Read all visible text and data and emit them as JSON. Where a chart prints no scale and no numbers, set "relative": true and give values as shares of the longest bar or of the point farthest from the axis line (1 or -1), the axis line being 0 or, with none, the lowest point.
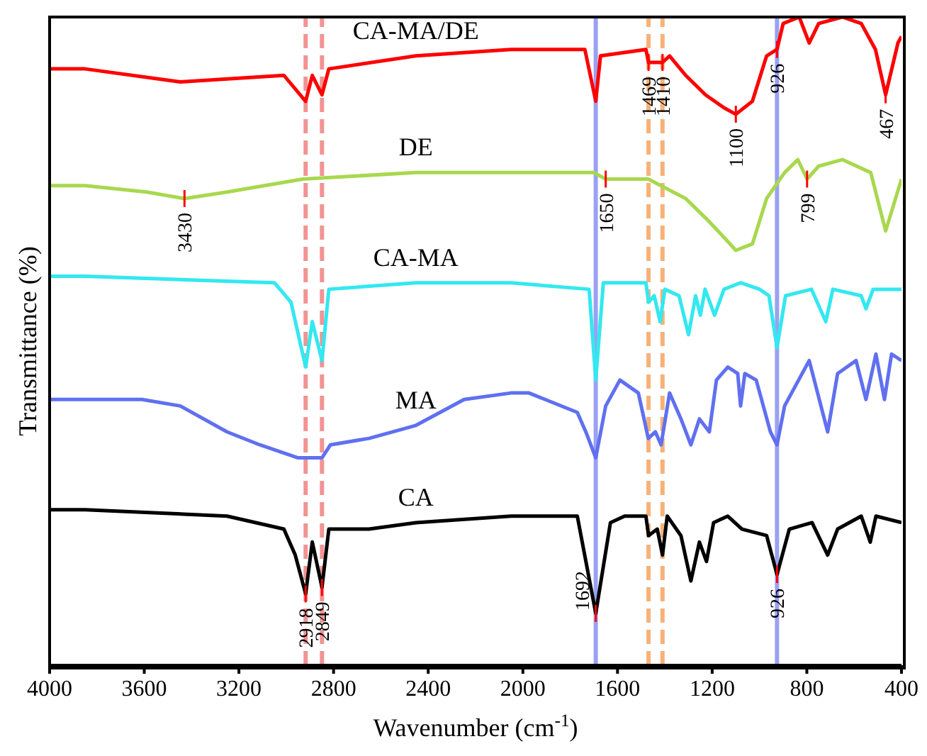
{
  "chart_data": {
    "type": "line",
    "relative": true,
    "xlabel": "Wavenumber (cm$^{-1}$)",
    "ylabel": "Transmittance (%)",
    "xlim": [
      4000,
      400
    ],
    "xticks": [
      4000,
      3600,
      3200,
      2800,
      2400,
      2000,
      1600,
      1200,
      800,
      400
    ],
    "marker": "none",
    "line_style": "solid",
    "series": [
      {
        "name": "CA-MA/DE",
        "color": "#ff0000",
        "x": [
          4000,
          3850,
          3448,
          3010,
          2918,
          2890,
          2849,
          2820,
          2452,
          2050,
          1738,
          1692,
          1672,
          1480,
          1469,
          1432,
          1410,
          1380,
          1312,
          1228,
          1150,
          1100,
          1030,
          970,
          926,
          900,
          832,
          790,
          750,
          650,
          570,
          510,
          467,
          415,
          400
        ],
        "values": [
          0.92,
          0.92,
          0.9,
          0.91,
          0.87,
          0.91,
          0.88,
          0.92,
          0.94,
          0.95,
          0.95,
          0.87,
          0.94,
          0.95,
          0.93,
          0.93,
          0.93,
          0.94,
          0.91,
          0.88,
          0.86,
          0.85,
          0.87,
          0.94,
          0.95,
          0.99,
          1,
          0.96,
          0.99,
          1,
          0.99,
          0.95,
          0.88,
          0.96,
          0.97
        ]
      },
      {
        "name": "DE",
        "color": "#a8d84e",
        "x": [
          4000,
          3850,
          3590,
          3430,
          3250,
          2930,
          2452,
          2050,
          1700,
          1650,
          1470,
          1312,
          1228,
          1150,
          1100,
          1030,
          970,
          894,
          838,
          799,
          750,
          650,
          530,
          467,
          400
        ],
        "values": [
          0.74,
          0.74,
          0.73,
          0.72,
          0.73,
          0.75,
          0.76,
          0.76,
          0.76,
          0.75,
          0.75,
          0.72,
          0.69,
          0.66,
          0.64,
          0.65,
          0.72,
          0.76,
          0.78,
          0.75,
          0.77,
          0.78,
          0.76,
          0.67,
          0.75
        ]
      },
      {
        "name": "CA-MA",
        "color": "#33e8f0",
        "x": [
          4000,
          3850,
          3050,
          2980,
          2918,
          2890,
          2849,
          2820,
          2452,
          2050,
          1720,
          1692,
          1660,
          1480,
          1469,
          1445,
          1420,
          1400,
          1340,
          1300,
          1270,
          1250,
          1230,
          1190,
          1150,
          1080,
          1000,
          960,
          926,
          890,
          780,
          720,
          690,
          570,
          550,
          520,
          400
        ],
        "values": [
          0.6,
          0.6,
          0.59,
          0.56,
          0.46,
          0.53,
          0.47,
          0.58,
          0.59,
          0.59,
          0.58,
          0.44,
          0.59,
          0.59,
          0.56,
          0.57,
          0.53,
          0.58,
          0.57,
          0.51,
          0.57,
          0.54,
          0.58,
          0.54,
          0.58,
          0.59,
          0.58,
          0.57,
          0.49,
          0.57,
          0.58,
          0.53,
          0.58,
          0.57,
          0.55,
          0.58,
          0.58
        ]
      },
      {
        "name": "MA",
        "color": "#6070f0",
        "x": [
          4000,
          3850,
          3610,
          3448,
          3250,
          3112,
          2950,
          2849,
          2813,
          2650,
          2452,
          2248,
          2050,
          1974,
          1770,
          1734,
          1692,
          1650,
          1590,
          1512,
          1470,
          1440,
          1416,
          1380,
          1332,
          1290,
          1254,
          1212,
          1182,
          1134,
          1092,
          1080,
          1062,
          1014,
          954,
          926,
          894,
          790,
          712,
          670,
          592,
          550,
          508,
          472,
          442,
          400
        ],
        "values": [
          0.41,
          0.41,
          0.41,
          0.4,
          0.36,
          0.34,
          0.32,
          0.32,
          0.34,
          0.35,
          0.37,
          0.41,
          0.42,
          0.42,
          0.39,
          0.36,
          0.32,
          0.4,
          0.44,
          0.42,
          0.35,
          0.36,
          0.34,
          0.42,
          0.38,
          0.34,
          0.38,
          0.36,
          0.44,
          0.46,
          0.45,
          0.4,
          0.45,
          0.44,
          0.36,
          0.34,
          0.4,
          0.47,
          0.36,
          0.45,
          0.47,
          0.41,
          0.48,
          0.41,
          0.48,
          0.47
        ]
      },
      {
        "name": "CA",
        "color": "#000000",
        "x": [
          4000,
          3850,
          3250,
          3010,
          2962,
          2918,
          2890,
          2849,
          2820,
          2650,
          2452,
          2050,
          1770,
          1692,
          1630,
          1570,
          1480,
          1469,
          1432,
          1410,
          1390,
          1332,
          1290,
          1254,
          1224,
          1194,
          1134,
          1074,
          970,
          926,
          874,
          778,
          712,
          670,
          570,
          532,
          508,
          400
        ],
        "values": [
          0.24,
          0.24,
          0.23,
          0.21,
          0.17,
          0.11,
          0.19,
          0.12,
          0.21,
          0.21,
          0.22,
          0.23,
          0.23,
          0.08,
          0.22,
          0.23,
          0.23,
          0.2,
          0.21,
          0.17,
          0.23,
          0.2,
          0.13,
          0.19,
          0.16,
          0.22,
          0.23,
          0.21,
          0.2,
          0.14,
          0.21,
          0.22,
          0.17,
          0.21,
          0.23,
          0.19,
          0.23,
          0.22
        ]
      }
    ],
    "ref_lines": [
      {
        "axis": "x",
        "value": 2918,
        "color": "#f08080",
        "line_style": "dashed"
      },
      {
        "axis": "x",
        "value": 2849,
        "color": "#f08080",
        "line_style": "dashed"
      },
      {
        "axis": "x",
        "value": 1692,
        "color": "#8890f0",
        "line_style": "solid"
      },
      {
        "axis": "x",
        "value": 926,
        "color": "#8890f0",
        "line_style": "solid"
      },
      {
        "axis": "x",
        "value": 1469,
        "color": "#f4a460",
        "line_style": "dashed"
      },
      {
        "axis": "x",
        "value": 1410,
        "color": "#f4a460",
        "line_style": "dashed"
      }
    ],
    "annotations": [
      {
        "text": "3430",
        "x": 3430,
        "y": 0.72
      },
      {
        "text": "1650",
        "x": 1650,
        "y": 0.75
      },
      {
        "text": "799",
        "x": 799,
        "y": 0.75
      },
      {
        "text": "1469",
        "x": 1469,
        "y": 0.93
      },
      {
        "text": "1410",
        "x": 1410,
        "y": 0.93
      },
      {
        "text": "1100",
        "x": 1100,
        "y": 0.85
      },
      {
        "text": "926",
        "x": 926,
        "y": 0.95
      },
      {
        "text": "467",
        "x": 467,
        "y": 0.88
      },
      {
        "text": "2918",
        "x": 2918,
        "y": 0.11
      },
      {
        "text": "2849",
        "x": 2849,
        "y": 0.12
      },
      {
        "text": "1692",
        "x": 1692,
        "y": 0.08
      },
      {
        "text": "926",
        "x": 926,
        "y": 0.14
      }
    ]
  }
}
